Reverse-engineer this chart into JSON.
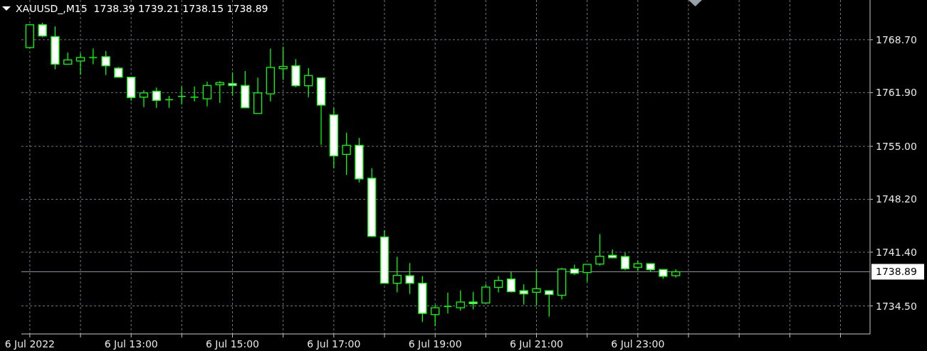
{
  "chart_data": {
    "type": "candlestick",
    "title": "XAUUSD_,M15  1738.39 1739.21 1738.15 1738.89",
    "color": "#00ff00",
    "x": [
      "2022-07-06T11:00",
      "2022-07-06T11:15",
      "2022-07-06T11:30",
      "2022-07-06T11:45",
      "2022-07-06T12:00",
      "2022-07-06T12:15",
      "2022-07-06T12:30",
      "2022-07-06T12:45",
      "2022-07-06T13:00",
      "2022-07-06T13:15",
      "2022-07-06T13:30",
      "2022-07-06T13:45",
      "2022-07-06T14:00",
      "2022-07-06T14:15",
      "2022-07-06T14:30",
      "2022-07-06T14:45",
      "2022-07-06T15:00",
      "2022-07-06T15:15",
      "2022-07-06T15:30",
      "2022-07-06T15:45",
      "2022-07-06T16:00",
      "2022-07-06T16:15",
      "2022-07-06T16:30",
      "2022-07-06T16:45",
      "2022-07-06T17:00",
      "2022-07-06T17:15",
      "2022-07-06T17:30",
      "2022-07-06T17:45",
      "2022-07-06T18:00",
      "2022-07-06T18:15",
      "2022-07-06T18:30",
      "2022-07-06T18:45",
      "2022-07-06T19:00",
      "2022-07-06T19:15",
      "2022-07-06T19:30",
      "2022-07-06T19:45",
      "2022-07-06T20:00",
      "2022-07-06T20:15",
      "2022-07-06T20:30",
      "2022-07-06T20:45",
      "2022-07-06T21:00",
      "2022-07-06T21:15",
      "2022-07-06T21:30",
      "2022-07-06T21:45",
      "2022-07-06T22:00",
      "2022-07-06T22:15",
      "2022-07-06T22:30",
      "2022-07-06T22:45",
      "2022-07-06T23:00",
      "2022-07-06T23:15",
      "2022-07-06T23:30",
      "2022-07-06T23:45"
    ],
    "ohlc": [
      [
        1767.69,
        1770.7,
        1767.6,
        1770.62
      ],
      [
        1770.62,
        1770.87,
        1769.0,
        1769.18
      ],
      [
        1769.09,
        1770.41,
        1764.89,
        1765.56
      ],
      [
        1765.56,
        1767.05,
        1765.56,
        1766.11
      ],
      [
        1765.96,
        1766.96,
        1764.22,
        1766.41
      ],
      [
        1766.41,
        1767.58,
        1765.53,
        1766.41
      ],
      [
        1766.51,
        1767.26,
        1764.16,
        1765.35
      ],
      [
        1765.04,
        1765.2,
        1763.88,
        1763.88
      ],
      [
        1763.88,
        1763.88,
        1760.87,
        1761.27
      ],
      [
        1761.32,
        1762.21,
        1760.04,
        1761.87
      ],
      [
        1762.09,
        1762.55,
        1759.95,
        1760.9
      ],
      [
        1761.0,
        1761.48,
        1759.95,
        1761.0
      ],
      [
        1761.41,
        1762.69,
        1760.41,
        1761.41
      ],
      [
        1761.32,
        1762.69,
        1760.78,
        1761.32
      ],
      [
        1761.11,
        1763.31,
        1760.14,
        1762.82
      ],
      [
        1762.91,
        1763.37,
        1760.56,
        1763.19
      ],
      [
        1763.06,
        1764.52,
        1761.48,
        1762.82
      ],
      [
        1762.82,
        1764.68,
        1759.95,
        1759.95
      ],
      [
        1759.22,
        1763.83,
        1759.22,
        1761.87
      ],
      [
        1761.75,
        1767.58,
        1760.78,
        1765.14
      ],
      [
        1764.98,
        1767.79,
        1763.52,
        1765.25
      ],
      [
        1765.35,
        1766.2,
        1762.6,
        1762.79
      ],
      [
        1762.79,
        1765.04,
        1761.32,
        1764.1
      ],
      [
        1763.79,
        1763.79,
        1755.2,
        1760.29
      ],
      [
        1759.04,
        1759.95,
        1752.18,
        1753.77
      ],
      [
        1753.96,
        1756.75,
        1751.33,
        1755.14
      ],
      [
        1755.14,
        1756.09,
        1750.35,
        1750.81
      ],
      [
        1750.9,
        1752.18,
        1743.35,
        1743.44
      ],
      [
        1743.35,
        1744.2,
        1737.41,
        1737.41
      ],
      [
        1737.41,
        1740.82,
        1736.25,
        1738.42
      ],
      [
        1738.38,
        1740.0,
        1736.04,
        1737.41
      ],
      [
        1737.41,
        1738.33,
        1732.44,
        1733.54
      ],
      [
        1733.39,
        1734.67,
        1731.93,
        1734.27
      ],
      [
        1734.42,
        1736.19,
        1733.54,
        1734.42
      ],
      [
        1734.27,
        1736.5,
        1733.9,
        1735.0
      ],
      [
        1735.0,
        1736.31,
        1734.06,
        1734.79
      ],
      [
        1734.88,
        1737.32,
        1734.88,
        1736.92
      ],
      [
        1736.89,
        1738.33,
        1736.25,
        1737.78
      ],
      [
        1737.96,
        1738.93,
        1736.25,
        1736.34
      ],
      [
        1736.46,
        1737.26,
        1734.67,
        1736.04
      ],
      [
        1736.25,
        1739.15,
        1734.51,
        1736.71
      ],
      [
        1736.46,
        1736.46,
        1733.14,
        1735.98
      ],
      [
        1735.86,
        1739.39,
        1735.36,
        1739.24
      ],
      [
        1739.24,
        1739.79,
        1738.47,
        1738.69
      ],
      [
        1738.78,
        1739.84,
        1737.62,
        1739.84
      ],
      [
        1739.87,
        1743.72,
        1739.69,
        1740.88
      ],
      [
        1741.0,
        1741.74,
        1740.63,
        1740.69
      ],
      [
        1740.85,
        1741.32,
        1739.06,
        1739.28
      ],
      [
        1739.46,
        1740.31,
        1738.99,
        1739.93
      ],
      [
        1739.93,
        1739.93,
        1738.9,
        1739.15
      ],
      [
        1739.18,
        1739.18,
        1737.99,
        1738.3
      ],
      [
        1738.39,
        1739.21,
        1738.15,
        1738.89
      ]
    ],
    "xlim": [
      "2022-07-06T10:50",
      "2022-07-07T03:35"
    ],
    "xticks": [
      {
        "value": "2022-07-06T11:00",
        "label": "6 Jul 2022"
      },
      {
        "value": "2022-07-06T12:00",
        "label": null
      },
      {
        "value": "2022-07-06T13:00",
        "label": "6 Jul 13:00"
      },
      {
        "value": "2022-07-06T14:00",
        "label": null
      },
      {
        "value": "2022-07-06T15:00",
        "label": "6 Jul 15:00"
      },
      {
        "value": "2022-07-06T16:00",
        "label": null
      },
      {
        "value": "2022-07-06T17:00",
        "label": "6 Jul 17:00"
      },
      {
        "value": "2022-07-06T18:00",
        "label": null
      },
      {
        "value": "2022-07-06T19:00",
        "label": "6 Jul 19:00"
      },
      {
        "value": "2022-07-06T20:00",
        "label": null
      },
      {
        "value": "2022-07-06T21:00",
        "label": "6 Jul 21:00"
      },
      {
        "value": "2022-07-06T22:00",
        "label": null
      },
      {
        "value": "2022-07-06T23:00",
        "label": "6 Jul 23:00"
      },
      {
        "value": "2022-07-07T00:00",
        "label": null
      },
      {
        "value": "2022-07-07T01:00",
        "label": null
      },
      {
        "value": "2022-07-07T02:00",
        "label": null
      },
      {
        "value": "2022-07-07T03:00",
        "label": null
      }
    ],
    "ylim": [
      1730.9,
      1773.8
    ],
    "yticks": [
      {
        "value": 1734.5,
        "label": "1734.50"
      },
      {
        "value": 1741.4,
        "label": "1741.40"
      },
      {
        "value": 1748.2,
        "label": "1748.20"
      },
      {
        "value": 1755.0,
        "label": "1755.00"
      },
      {
        "value": 1761.9,
        "label": "1761.90"
      },
      {
        "value": 1768.7,
        "label": "1768.70"
      }
    ],
    "grid": true,
    "ref_lines": [
      {
        "axis": "y",
        "value": 1738.89,
        "label": "1738.89",
        "color": "#8c96a0"
      }
    ]
  }
}
